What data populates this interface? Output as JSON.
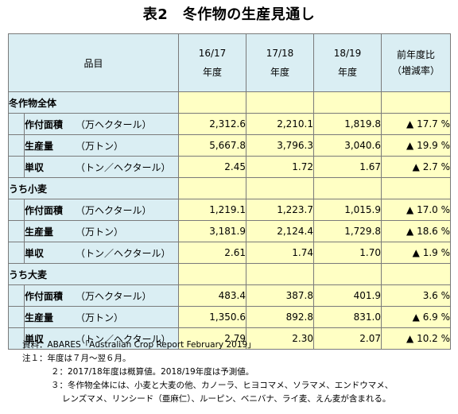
{
  "title": "表2　冬作物の生産見通し",
  "header": {
    "item": "品目",
    "years": [
      {
        "line1": "16/17",
        "line2": "年度"
      },
      {
        "line1": "17/18",
        "line2": "年度"
      },
      {
        "line1": "18/19",
        "line2": "年度"
      }
    ],
    "change_line1": "前年度比",
    "change_line2": "（増減率）"
  },
  "groups": [
    {
      "name": "冬作物全体",
      "rows": [
        {
          "label": "作付面積",
          "unit": "（万ヘクタール）",
          "values": [
            "2,312.6",
            "2,210.1",
            "1,819.8"
          ],
          "change": "▲ 17.7 %"
        },
        {
          "label": "生産量",
          "unit": "（万トン）",
          "values": [
            "5,667.8",
            "3,796.3",
            "3,040.6"
          ],
          "change": "▲ 19.9 %"
        },
        {
          "label": "単収",
          "unit": "（トン／ヘクタール）",
          "values": [
            "2.45",
            "1.72",
            "1.67"
          ],
          "change": "▲ 2.7 %"
        }
      ]
    },
    {
      "name": "うち小麦",
      "rows": [
        {
          "label": "作付面積",
          "unit": "（万ヘクタール）",
          "values": [
            "1,219.1",
            "1,223.7",
            "1,015.9"
          ],
          "change": "▲ 17.0 %"
        },
        {
          "label": "生産量",
          "unit": "（万トン）",
          "values": [
            "3,181.9",
            "2,124.4",
            "1,729.8"
          ],
          "change": "▲ 18.6 %"
        },
        {
          "label": "単収",
          "unit": "（トン／ヘクタール）",
          "values": [
            "2.61",
            "1.74",
            "1.70"
          ],
          "change": "▲ 1.9 %"
        }
      ]
    },
    {
      "name": "うち大麦",
      "rows": [
        {
          "label": "作付面積",
          "unit": "（万ヘクタール）",
          "values": [
            "483.4",
            "387.8",
            "401.9"
          ],
          "change": "3.6 %"
        },
        {
          "label": "生産量",
          "unit": "（万トン）",
          "values": [
            "1,350.6",
            "892.8",
            "831.0"
          ],
          "change": "▲ 6.9 %"
        },
        {
          "label": "単収",
          "unit": "（トン／ヘクタール）",
          "values": [
            "2.79",
            "2.30",
            "2.07"
          ],
          "change": "▲ 10.2 %"
        }
      ]
    }
  ],
  "notes": [
    {
      "text": "資料：ABARES「Australian Crop Report February 2019」",
      "style": "first"
    },
    {
      "text": "注１：年度は７月～翌６月。",
      "style": "first"
    },
    {
      "text": "２：2017/18年度は概算値。2018/19年度は予測値。",
      "style": "sub"
    },
    {
      "text": "３：冬作物全体には、小麦と大麦の他、カノーラ、ヒヨコマメ、ソラマメ、エンドウマメ、",
      "style": "sub"
    },
    {
      "text": "レンズマメ、リンシード（亜麻仁）、ルーピン、ベニバナ、ライ麦、えん麦が含まれる。",
      "style": "sub2"
    }
  ]
}
